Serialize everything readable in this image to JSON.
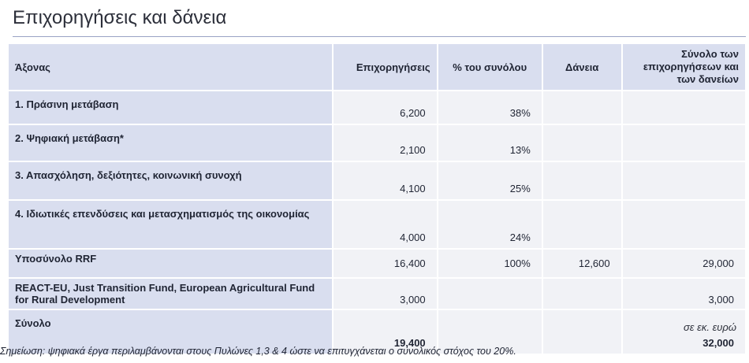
{
  "title": "Επιχορηγήσεις και δάνεια",
  "table": {
    "headers": [
      "Άξονας",
      "Επιχορηγήσεις",
      "% του συνόλου",
      "Δάνεια",
      "Σύνολο των επιχορηγήσεων και των δανείων"
    ],
    "rows": [
      [
        "1. Πράσινη μετάβαση",
        "6,200",
        "38%",
        "",
        ""
      ],
      [
        "2. Ψηφιακή μετάβαση*",
        "2,100",
        "13%",
        "",
        ""
      ],
      [
        "3. Απασχόληση, δεξιότητες, κοινωνική συνοχή",
        "4,100",
        "25%",
        "",
        ""
      ],
      [
        "4. Ιδιωτικές επενδύσεις και μετασχηματισμός της οικονομίας",
        "4,000",
        "24%",
        "",
        ""
      ],
      [
        "Υποσύνολο RRF",
        "16,400",
        "100%",
        "12,600",
        "29,000"
      ],
      [
        "REACT-EU, Just Transition Fund, European Agricultural Fund for Rural Development",
        "3,000",
        "",
        "",
        "3,000"
      ],
      [
        "Σύνολο",
        "19,400",
        "",
        "",
        "32,000"
      ]
    ]
  },
  "unit_note": "σε εκ. ευρώ",
  "footnote": "Σημείωση: ψηφιακά έργα περιλαμβάνονται στους Πυλώνες 1,3 & 4 ώστε να επιτυγχάνεται ο συνολικός στόχος του 20%."
}
